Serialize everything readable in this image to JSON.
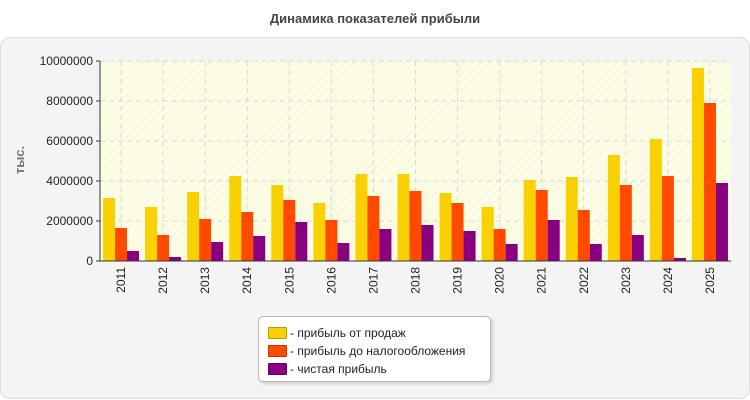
{
  "chart_data": {
    "type": "bar",
    "title": "Динамика показателей прибыли",
    "ylabel": "тыс.",
    "xlabel": "",
    "ylim": [
      0,
      10000000
    ],
    "y_ticks": [
      "0",
      "2000000",
      "4000000",
      "6000000",
      "8000000",
      "10000000"
    ],
    "grid": true,
    "legend_position": "bottom",
    "categories": [
      "2011",
      "2012",
      "2013",
      "2014",
      "2015",
      "2016",
      "2017",
      "2018",
      "2019",
      "2020",
      "2021",
      "2022",
      "2023",
      "2024",
      "2025"
    ],
    "series": [
      {
        "name": "- прибыль от продаж",
        "color": "#f9d000",
        "values": [
          3150000,
          2700000,
          3450000,
          4250000,
          3800000,
          2900000,
          4350000,
          4350000,
          3400000,
          2700000,
          4050000,
          4200000,
          5300000,
          6100000,
          9650000
        ]
      },
      {
        "name": "- прибыль до налогообложения",
        "color": "#ff4a00",
        "values": [
          1650000,
          1300000,
          2100000,
          2450000,
          3050000,
          2050000,
          3250000,
          3500000,
          2900000,
          1600000,
          3550000,
          2550000,
          3800000,
          4250000,
          7900000
        ]
      },
      {
        "name": "- чистая прибыль",
        "color": "#880080",
        "values": [
          500000,
          200000,
          950000,
          1250000,
          1950000,
          900000,
          1600000,
          1800000,
          1500000,
          850000,
          2050000,
          850000,
          1300000,
          150000,
          3900000
        ]
      }
    ]
  }
}
